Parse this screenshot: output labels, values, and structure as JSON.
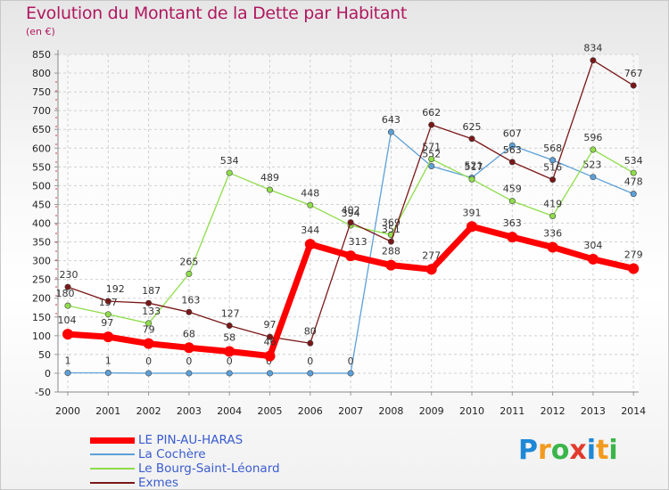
{
  "title": "Evolution du Montant de la Dette par Habitant",
  "subtitle": "(en €)",
  "logo": {
    "text": "Proxiti",
    "letters": [
      {
        "ch": "P",
        "color": "#1e88d6"
      },
      {
        "ch": "r",
        "color": "#f29a1d"
      },
      {
        "ch": "o",
        "color": "#3bb54a"
      },
      {
        "ch": "x",
        "color": "#e23b2e"
      },
      {
        "ch": "i",
        "color": "#1e88d6"
      },
      {
        "ch": "t",
        "color": "#f29a1d"
      },
      {
        "ch": "i",
        "color": "#3bb54a"
      }
    ]
  },
  "chart_data": {
    "type": "line",
    "x": [
      "2000",
      "2001",
      "2002",
      "2003",
      "2004",
      "2005",
      "2006",
      "2007",
      "2008",
      "2009",
      "2010",
      "2011",
      "2012",
      "2013",
      "2014"
    ],
    "ylim": [
      -50,
      850
    ],
    "yticks": [
      -50,
      0,
      50,
      100,
      150,
      200,
      250,
      300,
      350,
      400,
      450,
      500,
      550,
      600,
      650,
      700,
      750,
      800,
      850
    ],
    "grid": true,
    "legend_position": "bottom-left",
    "series": [
      {
        "name": "LE PIN-AU-HARAS",
        "color": "#ff0000",
        "width": 7,
        "values": [
          104,
          97,
          79,
          68,
          58,
          46,
          344,
          313,
          288,
          277,
          391,
          363,
          336,
          304,
          279
        ],
        "labels": [
          "104",
          "97",
          "79",
          "68",
          "58",
          "46",
          "344",
          "313",
          "288",
          "277",
          "391",
          "363",
          "336",
          "304",
          "279"
        ],
        "labelOffsets": [
          [
            -1,
            -12
          ],
          [
            -1,
            -12
          ],
          [
            0,
            -12
          ],
          [
            0,
            -12
          ],
          [
            0,
            -12
          ],
          [
            0,
            -12
          ],
          [
            0,
            -12
          ],
          [
            8,
            -12
          ],
          [
            0,
            -12
          ],
          [
            0,
            -12
          ],
          [
            0,
            -12
          ],
          [
            0,
            -12
          ],
          [
            0,
            -12
          ],
          [
            0,
            -12
          ],
          [
            0,
            -12
          ]
        ]
      },
      {
        "name": "La Cochère",
        "color": "#5ca0d8",
        "width": 1.3,
        "values": [
          1,
          1,
          0,
          0,
          0,
          0,
          0,
          0,
          643,
          552,
          521,
          607,
          568,
          523,
          478
        ],
        "labels": [
          "1",
          "1",
          "0",
          "0",
          "0",
          "0",
          "0",
          "0",
          "643",
          "552",
          "521",
          "607",
          "568",
          "523",
          "478"
        ],
        "labelOffsets": [
          [
            0,
            -10
          ],
          [
            0,
            -10
          ],
          [
            0,
            -10
          ],
          [
            0,
            -10
          ],
          [
            0,
            -10
          ],
          [
            -1,
            -10
          ],
          [
            0,
            -10
          ],
          [
            0,
            -10
          ],
          [
            0,
            -10
          ],
          [
            0,
            -10
          ],
          [
            2,
            -10
          ],
          [
            0,
            -10
          ],
          [
            0,
            -10
          ],
          [
            -1,
            -10
          ],
          [
            0,
            -10
          ]
        ]
      },
      {
        "name": "Le Bourg-Saint-Léonard",
        "color": "#8fdd4a",
        "width": 1.3,
        "values": [
          180,
          157,
          133,
          265,
          534,
          489,
          448,
          394,
          369,
          571,
          517,
          459,
          419,
          596,
          534
        ],
        "labels": [
          "180",
          "157",
          "133",
          "265",
          "534",
          "489",
          "448",
          "394",
          "369",
          "571",
          "517",
          "459",
          "419",
          "596",
          "534"
        ],
        "labelOffsets": [
          [
            -3,
            -10
          ],
          [
            0,
            -10
          ],
          [
            3,
            -10
          ],
          [
            0,
            -10
          ],
          [
            0,
            -10
          ],
          [
            0,
            -10
          ],
          [
            0,
            -10
          ],
          [
            0,
            -10
          ],
          [
            0,
            -10
          ],
          [
            0,
            -10
          ],
          [
            2,
            -10
          ],
          [
            0,
            -10
          ],
          [
            0,
            -10
          ],
          [
            0,
            -10
          ],
          [
            0,
            -10
          ]
        ]
      },
      {
        "name": "Exmes",
        "color": "#7a1717",
        "width": 1.3,
        "values": [
          230,
          192,
          187,
          163,
          127,
          97,
          80,
          402,
          351,
          662,
          625,
          563,
          516,
          834,
          767
        ],
        "labels": [
          "230",
          "192",
          "187",
          "163",
          "127",
          "97",
          "80",
          "402",
          "351",
          "662",
          "625",
          "563",
          "516",
          "834",
          "767"
        ],
        "labelOffsets": [
          [
            1,
            -10
          ],
          [
            8,
            -10
          ],
          [
            3,
            -10
          ],
          [
            2,
            -10
          ],
          [
            1,
            -10
          ],
          [
            0,
            -10
          ],
          [
            0,
            -10
          ],
          [
            0,
            -10
          ],
          [
            0,
            -10
          ],
          [
            0,
            -10
          ],
          [
            0,
            -10
          ],
          [
            0,
            -10
          ],
          [
            0,
            -10
          ],
          [
            0,
            -10
          ],
          [
            0,
            -10
          ]
        ]
      }
    ]
  }
}
